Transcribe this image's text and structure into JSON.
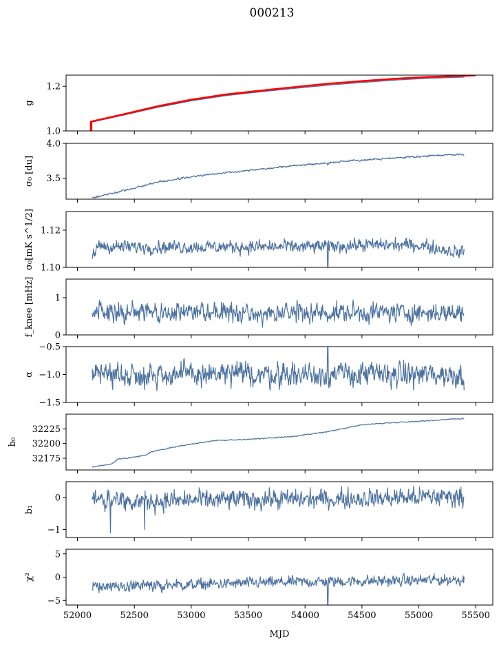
{
  "figure": {
    "title": "000213",
    "xlabel": "MJD",
    "xlim": [
      51900,
      55650
    ],
    "xticks": [
      52000,
      52500,
      53000,
      53500,
      54000,
      54500,
      55000,
      55500
    ],
    "x_start": 52130,
    "x_end": 55400
  },
  "colors": {
    "line": "#4c72a0",
    "highlight": "#ff0000",
    "axis": "#000000"
  },
  "chart_data": [
    {
      "type": "line",
      "id": "g",
      "ylabel": "g",
      "ylim": [
        1.0,
        1.25
      ],
      "yticks": [
        {
          "v": 1.0,
          "label": "1.0"
        },
        {
          "v": 1.2,
          "label": "1.2"
        }
      ],
      "series": [
        {
          "x": [
            52130,
            52400,
            52700,
            53000,
            53300,
            53600,
            53900,
            54200,
            54500,
            54800,
            55100,
            55400
          ],
          "y": [
            1.04,
            1.07,
            1.105,
            1.135,
            1.158,
            1.175,
            1.19,
            1.205,
            1.217,
            1.228,
            1.236,
            1.241
          ],
          "color": "line"
        },
        {
          "x": [
            52130,
            52400,
            52700,
            53000,
            53300,
            53600,
            53900,
            54200,
            54500,
            54800,
            55100,
            55400,
            55500
          ],
          "y": [
            1.043,
            1.074,
            1.11,
            1.14,
            1.163,
            1.18,
            1.196,
            1.211,
            1.223,
            1.234,
            1.242,
            1.247,
            1.249
          ],
          "color": "highlight"
        }
      ],
      "annotations": [
        {
          "type": "vertical-segment",
          "x": 52120,
          "y": [
            1.0,
            1.045
          ],
          "color": "highlight"
        }
      ]
    },
    {
      "type": "line",
      "id": "sigma0",
      "ylabel": "σ₀ [du]",
      "ylim": [
        3.2,
        4.0
      ],
      "yticks": [
        {
          "v": 3.5,
          "label": "3.5"
        },
        {
          "v": 4.0,
          "label": "4.0"
        }
      ],
      "trend": {
        "x": [
          52130,
          52300,
          52500,
          52700,
          53000,
          53300,
          53600,
          53900,
          54200,
          54500,
          54800,
          55100,
          55300,
          55400
        ],
        "y": [
          3.22,
          3.28,
          3.36,
          3.44,
          3.52,
          3.58,
          3.63,
          3.68,
          3.72,
          3.76,
          3.79,
          3.82,
          3.84,
          3.84
        ]
      },
      "noise": 0.006,
      "spikes": [
        {
          "x": 54200,
          "y": 3.69
        }
      ]
    },
    {
      "type": "line",
      "id": "sigma0-mks",
      "ylabel": "σ₀[mK s^1/2]",
      "ylim": [
        1.1,
        1.13
      ],
      "yticks": [
        {
          "v": 1.1,
          "label": "1.10"
        },
        {
          "v": 1.12,
          "label": "1.12"
        }
      ],
      "trend": {
        "x": [
          52130,
          52150,
          52200,
          52300,
          52600,
          53000,
          53500,
          54000,
          54500,
          55000,
          55350,
          55400
        ],
        "y": [
          1.106,
          1.107,
          1.112,
          1.111,
          1.111,
          1.111,
          1.111,
          1.111,
          1.112,
          1.112,
          1.108,
          1.109
        ]
      },
      "noise": 0.0016,
      "spikes": [
        {
          "x": 54200,
          "y": 1.0995
        }
      ]
    },
    {
      "type": "line",
      "id": "fknee",
      "ylabel": "f_knee [mHz]",
      "ylim": [
        0,
        1.5
      ],
      "yticks": [
        {
          "v": 0,
          "label": "0"
        },
        {
          "v": 1,
          "label": "1"
        }
      ],
      "trend": {
        "x": [
          52130,
          55400
        ],
        "y": [
          0.6,
          0.6
        ]
      },
      "noise": 0.12,
      "spikes": []
    },
    {
      "type": "line",
      "id": "alpha",
      "ylabel": "α",
      "ylim": [
        -1.5,
        -0.5
      ],
      "yticks": [
        {
          "v": -1.5,
          "label": "−1.5"
        },
        {
          "v": -1.0,
          "label": "−1.0"
        },
        {
          "v": -0.5,
          "label": "−0.5"
        }
      ],
      "trend": {
        "x": [
          52130,
          55400
        ],
        "y": [
          -1.0,
          -1.0
        ]
      },
      "noise": 0.1,
      "spikes": [
        {
          "x": 54200,
          "y": -0.5
        }
      ]
    },
    {
      "type": "line",
      "id": "b0",
      "ylabel": "b₀",
      "ylim": [
        32155,
        32250
      ],
      "yticks": [
        {
          "v": 32175,
          "label": "32175"
        },
        {
          "v": 32200,
          "label": "32200"
        },
        {
          "v": 32225,
          "label": "32225"
        }
      ],
      "trend": {
        "x": [
          52130,
          52300,
          52350,
          52500,
          52600,
          52650,
          52700,
          52900,
          53200,
          53500,
          53900,
          54200,
          54500,
          54800,
          55100,
          55300,
          55400
        ],
        "y": [
          32160,
          32165,
          32173,
          32177,
          32180,
          32186,
          32188,
          32196,
          32205,
          32207,
          32212,
          32220,
          32232,
          32236,
          32239,
          32242,
          32242
        ]
      },
      "noise": 0.4,
      "spikes": []
    },
    {
      "type": "line",
      "id": "b1",
      "ylabel": "b₁",
      "ylim": [
        -1.25,
        0.5
      ],
      "yticks": [
        {
          "v": -1,
          "label": "−1"
        },
        {
          "v": 0,
          "label": "0"
        }
      ],
      "trend": {
        "x": [
          52130,
          52300,
          52800,
          53500,
          54200,
          54800,
          55400
        ],
        "y": [
          0.0,
          -0.1,
          -0.1,
          -0.05,
          -0.05,
          0.0,
          0.05
        ]
      },
      "noise": 0.14,
      "spikes": [
        {
          "x": 52290,
          "y": -1.1
        },
        {
          "x": 52590,
          "y": -1.0
        }
      ]
    },
    {
      "type": "line",
      "id": "chi2",
      "ylabel": "χ²",
      "ylim": [
        -6,
        6
      ],
      "yticks": [
        {
          "v": -5,
          "label": "−5"
        },
        {
          "v": 0,
          "label": "0"
        },
        {
          "v": 5,
          "label": "5"
        }
      ],
      "trend": {
        "x": [
          52130,
          52600,
          53200,
          54000,
          54800,
          55400
        ],
        "y": [
          -2.0,
          -1.8,
          -1.5,
          -1.0,
          -0.8,
          -0.5
        ]
      },
      "noise": 0.55,
      "spikes": [
        {
          "x": 54200,
          "y": -6
        }
      ]
    }
  ]
}
